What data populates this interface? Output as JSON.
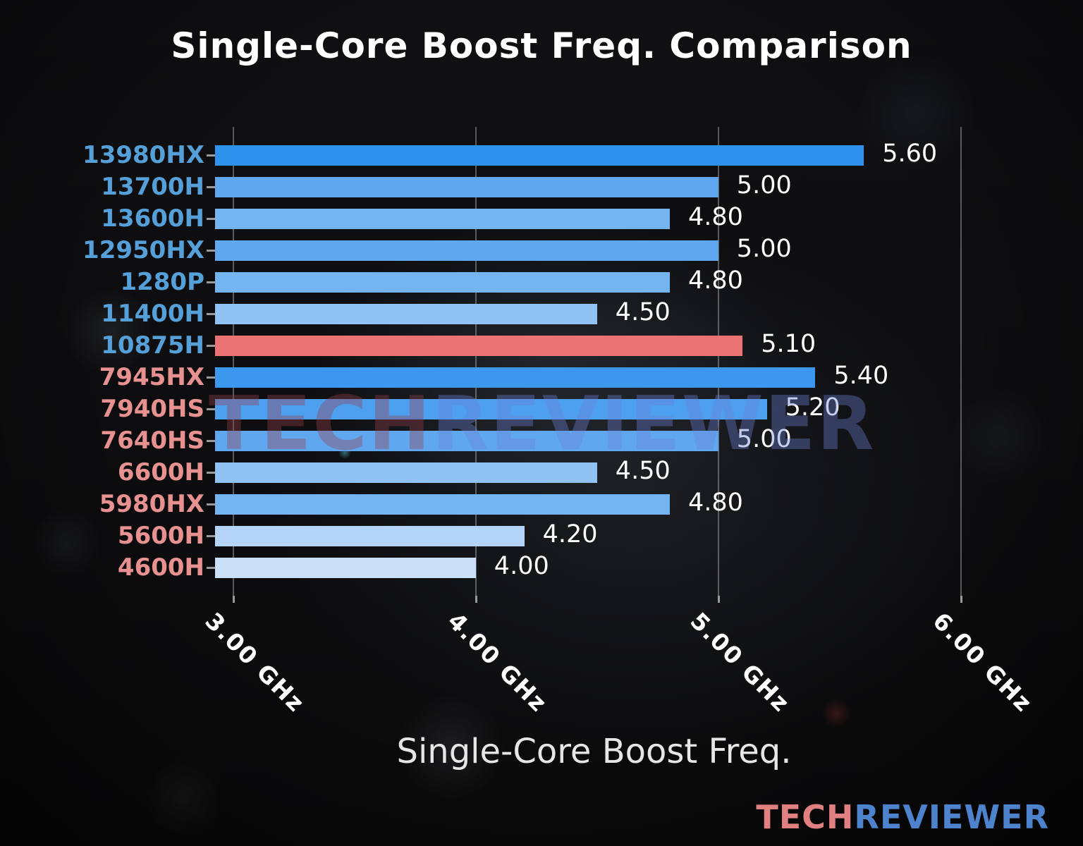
{
  "title": "Single-Core Boost Freq. Comparison",
  "watermark": {
    "tech": "TECH",
    "reviewer": "REVIEWER"
  },
  "logo": {
    "tech": "TECH",
    "reviewer": "REVIEWER"
  },
  "colors": {
    "intel_label": "#55a0d8",
    "amd_label": "#e89191",
    "highlight_bar": "#ec7373",
    "grid": "#9b9b9b",
    "watermark_tech": "rgba(150,62,75,0.38)",
    "watermark_reviewer": "rgba(108,128,212,0.38)",
    "logo_tech": "#e08080",
    "logo_reviewer": "#4d82cc"
  },
  "chart_data": {
    "type": "bar",
    "orientation": "horizontal",
    "title": "Single-Core Boost Freq. Comparison",
    "xlabel": "Single-Core Boost Freq.",
    "ylabel": "",
    "xlim": [
      2.925,
      6.05
    ],
    "grid": true,
    "x_ticks": [
      3.0,
      4.0,
      5.0,
      6.0
    ],
    "x_tick_labels": [
      "3.00 GHz",
      "4.00 GHz",
      "5.00 GHz",
      "6.00 GHz"
    ],
    "categories": [
      "13980HX",
      "13700H",
      "13600H",
      "12950HX",
      "1280P",
      "11400H",
      "10875H",
      "7945HX",
      "7940HS",
      "7640HS",
      "6600H",
      "5980HX",
      "5600H",
      "4600H"
    ],
    "values": [
      5.6,
      5.0,
      4.8,
      5.0,
      4.8,
      4.5,
      5.1,
      5.4,
      5.2,
      5.0,
      4.5,
      4.8,
      4.2,
      4.0
    ],
    "bars": [
      {
        "label": "13980HX",
        "value": 5.6,
        "display": "5.60",
        "bar_color": "#2e92ee",
        "label_color": "#55a0d8"
      },
      {
        "label": "13700H",
        "value": 5.0,
        "display": "5.00",
        "bar_color": "#5fa8f0",
        "label_color": "#55a0d8"
      },
      {
        "label": "13600H",
        "value": 4.8,
        "display": "4.80",
        "bar_color": "#74b4f1",
        "label_color": "#55a0d8"
      },
      {
        "label": "12950HX",
        "value": 5.0,
        "display": "5.00",
        "bar_color": "#5fa8f0",
        "label_color": "#55a0d8"
      },
      {
        "label": "1280P",
        "value": 4.8,
        "display": "4.80",
        "bar_color": "#74b4f1",
        "label_color": "#55a0d8"
      },
      {
        "label": "11400H",
        "value": 4.5,
        "display": "4.50",
        "bar_color": "#90c2f3",
        "label_color": "#55a0d8"
      },
      {
        "label": "10875H",
        "value": 5.1,
        "display": "5.10",
        "bar_color": "#ec7373",
        "label_color": "#55a0d8"
      },
      {
        "label": "7945HX",
        "value": 5.4,
        "display": "5.40",
        "bar_color": "#3c97ee",
        "label_color": "#e89191"
      },
      {
        "label": "7940HS",
        "value": 5.2,
        "display": "5.20",
        "bar_color": "#4d9fef",
        "label_color": "#e89191"
      },
      {
        "label": "7640HS",
        "value": 5.0,
        "display": "5.00",
        "bar_color": "#5fa8f0",
        "label_color": "#e89191"
      },
      {
        "label": "6600H",
        "value": 4.5,
        "display": "4.50",
        "bar_color": "#90c2f3",
        "label_color": "#e89191"
      },
      {
        "label": "5980HX",
        "value": 4.8,
        "display": "4.80",
        "bar_color": "#74b4f1",
        "label_color": "#e89191"
      },
      {
        "label": "5600H",
        "value": 4.2,
        "display": "4.20",
        "bar_color": "#b3d4f6",
        "label_color": "#e89191"
      },
      {
        "label": "4600H",
        "value": 4.0,
        "display": "4.00",
        "bar_color": "#c9e0f8",
        "label_color": "#e89191"
      }
    ]
  }
}
